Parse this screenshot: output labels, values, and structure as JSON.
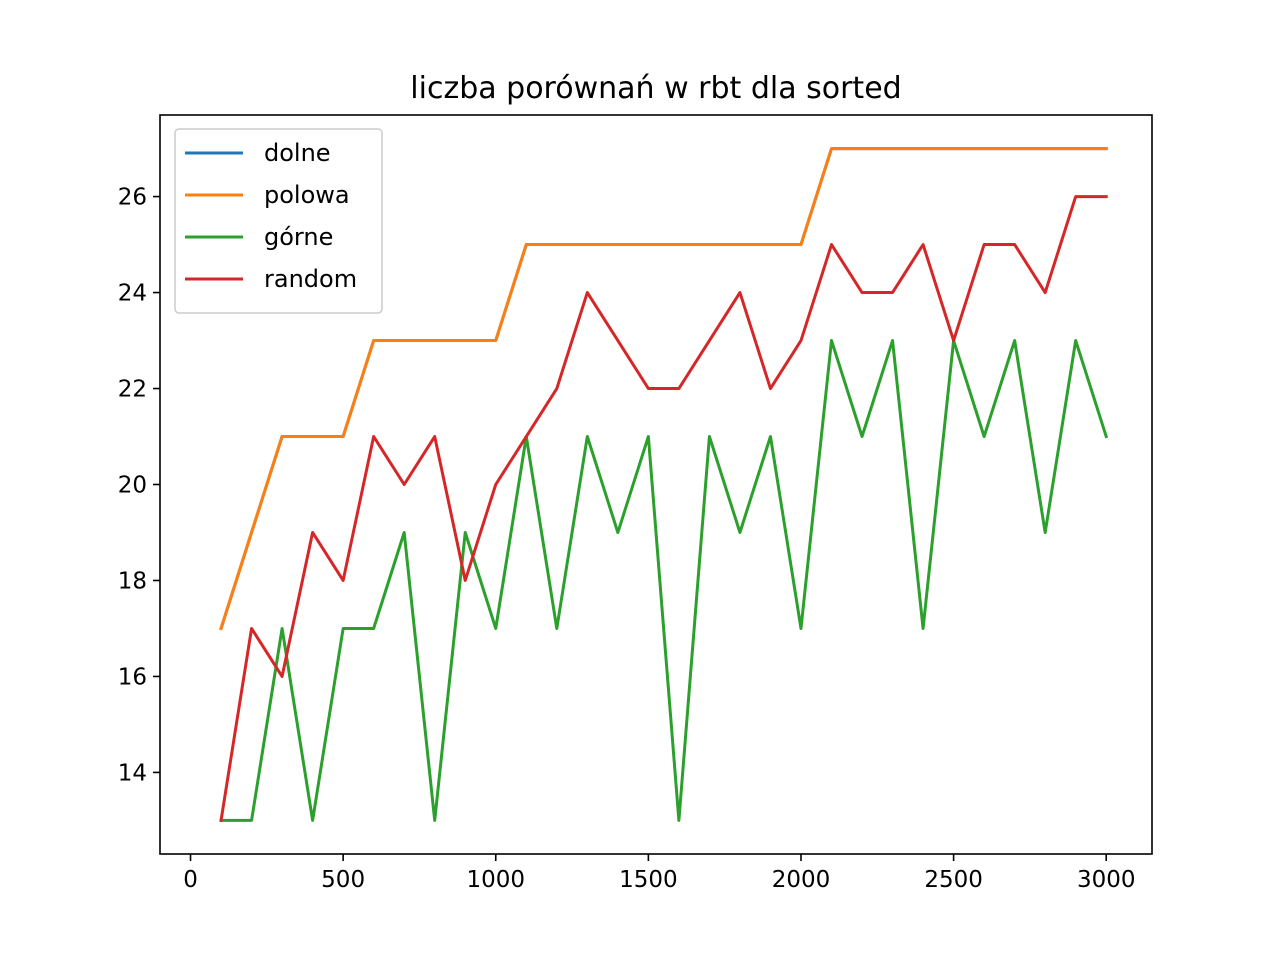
{
  "chart_data": {
    "type": "line",
    "title": "liczba porównań w rbt dla sorted",
    "xlabel": "",
    "ylabel": "",
    "xlim": [
      -100,
      3150
    ],
    "ylim": [
      12.3,
      27.7
    ],
    "grid": false,
    "legend_position": "upper-left",
    "x_ticks": [
      0,
      500,
      1000,
      1500,
      2000,
      2500,
      3000
    ],
    "y_ticks": [
      14,
      16,
      18,
      20,
      22,
      24,
      26
    ],
    "x": [
      100,
      200,
      300,
      400,
      500,
      600,
      700,
      800,
      900,
      1000,
      1100,
      1200,
      1300,
      1400,
      1500,
      1600,
      1700,
      1800,
      1900,
      2000,
      2100,
      2200,
      2300,
      2400,
      2500,
      2600,
      2700,
      2800,
      2900,
      3000
    ],
    "series": [
      {
        "name": "dolne",
        "color": "#1f77b4",
        "values": [
          17,
          19,
          21,
          21,
          21,
          23,
          23,
          23,
          23,
          23,
          25,
          25,
          25,
          25,
          25,
          25,
          25,
          25,
          25,
          25,
          27,
          27,
          27,
          27,
          27,
          27,
          27,
          27,
          27,
          27
        ]
      },
      {
        "name": "polowa",
        "color": "#ff7f0e",
        "values": [
          17,
          19,
          21,
          21,
          21,
          23,
          23,
          23,
          23,
          23,
          25,
          25,
          25,
          25,
          25,
          25,
          25,
          25,
          25,
          25,
          27,
          27,
          27,
          27,
          27,
          27,
          27,
          27,
          27,
          27
        ]
      },
      {
        "name": "górne",
        "color": "#2ca02c",
        "values": [
          13,
          13,
          17,
          13,
          17,
          17,
          19,
          13,
          19,
          17,
          21,
          17,
          21,
          19,
          21,
          13,
          21,
          19,
          21,
          17,
          23,
          21,
          23,
          17,
          23,
          21,
          23,
          19,
          23,
          21
        ]
      },
      {
        "name": "random",
        "color": "#d62728",
        "values": [
          13,
          17,
          16,
          19,
          18,
          21,
          20,
          21,
          18,
          20,
          21,
          22,
          24,
          23,
          22,
          22,
          23,
          24,
          22,
          23,
          25,
          24,
          24,
          25,
          23,
          25,
          25,
          24,
          26,
          26
        ]
      }
    ]
  }
}
